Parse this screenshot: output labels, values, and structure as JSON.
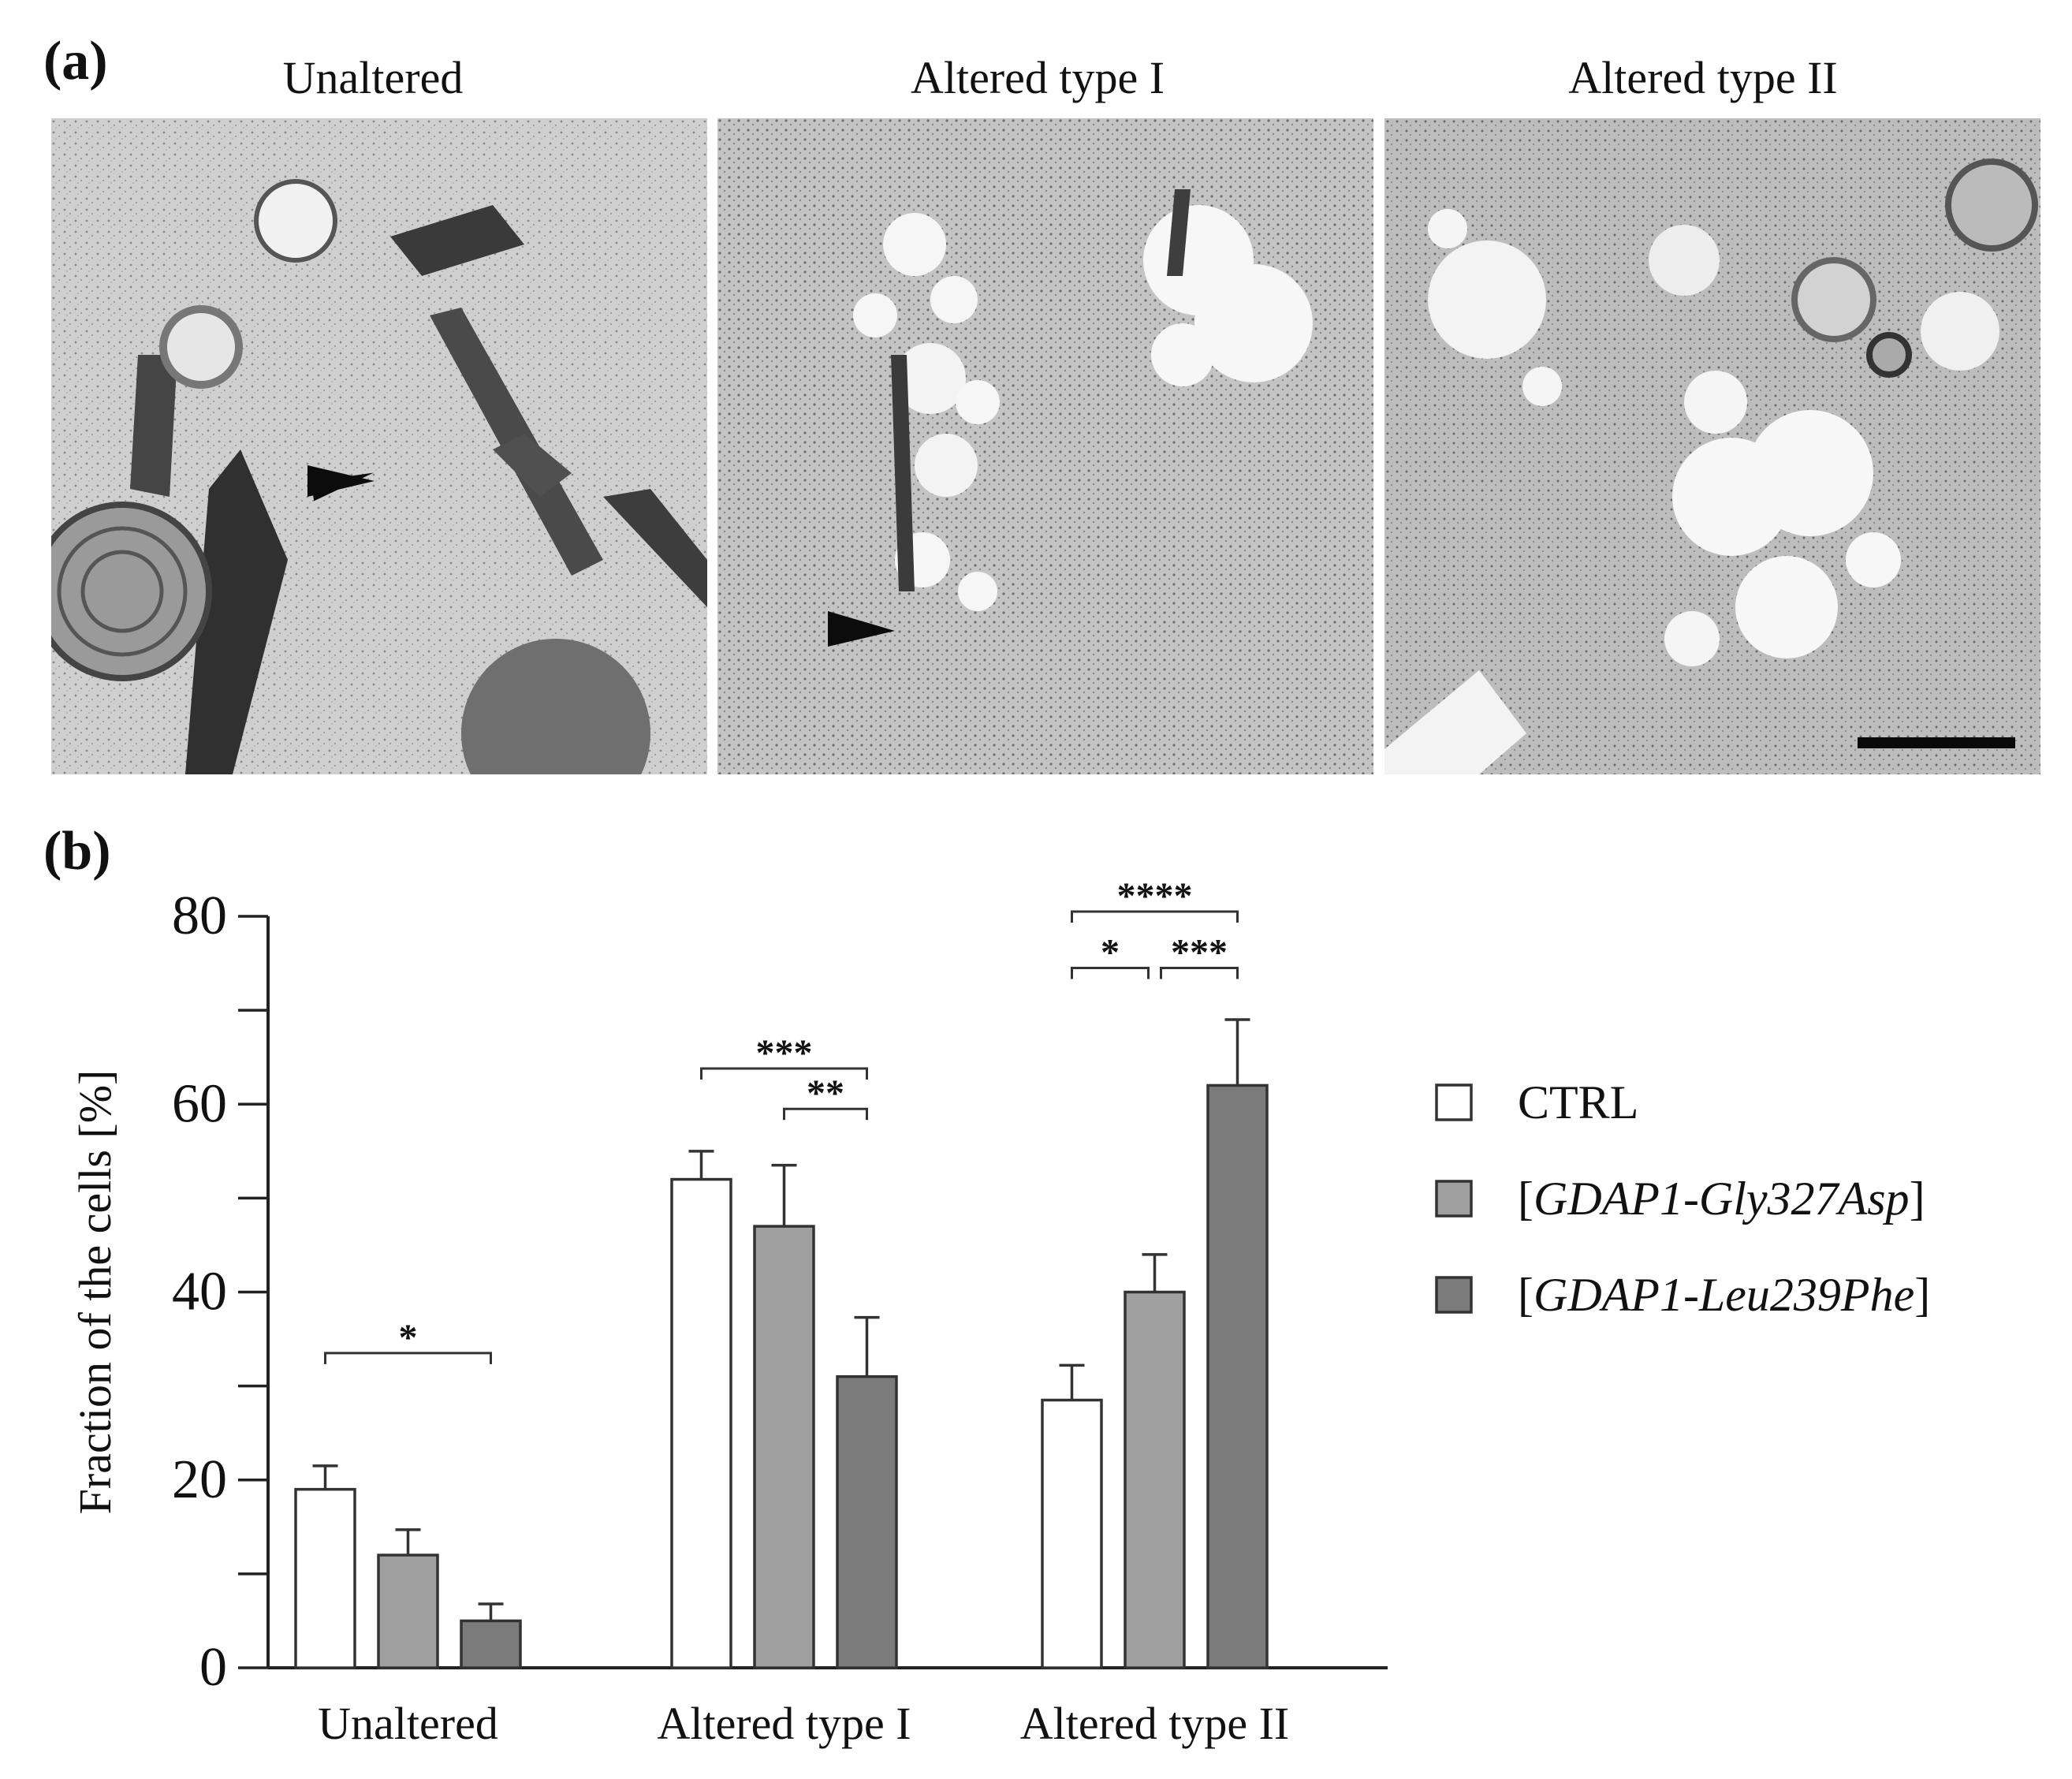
{
  "figure": {
    "panel_a_label": "(a)",
    "panel_b_label": "(b)",
    "micrograph_titles": [
      "Unaltered",
      "Altered type I",
      "Altered type II"
    ]
  },
  "colors": {
    "ctrl": "#ffffff",
    "gly327asp": "#a0a0a0",
    "leu239phe": "#7b7b7b",
    "axis": "#222222"
  },
  "chart_data": {
    "type": "bar",
    "title": "",
    "xlabel": "",
    "ylabel": "Fraction of the cells [%]",
    "ylim": [
      0,
      80
    ],
    "yticks": [
      "0",
      "20",
      "40",
      "60",
      "80"
    ],
    "categories": [
      "Unaltered",
      "Altered type I",
      "Altered type II"
    ],
    "series": [
      {
        "name": "CTRL",
        "values": [
          19,
          52,
          28.5
        ],
        "errors": [
          2.5,
          3,
          3.7
        ]
      },
      {
        "name": "[GDAP1-Gly327Asp]",
        "values": [
          12,
          47,
          40
        ],
        "errors": [
          2.7,
          6.5,
          4
        ]
      },
      {
        "name": "[GDAP1-Leu239Phe]",
        "values": [
          5,
          31,
          62
        ],
        "errors": [
          1.8,
          6.3,
          7
        ]
      }
    ],
    "legend_position": "right",
    "significance": [
      {
        "category": 0,
        "from": 0,
        "to": 2,
        "label": "*"
      },
      {
        "category": 1,
        "from": 0,
        "to": 2,
        "label": "***"
      },
      {
        "category": 1,
        "from": 1,
        "to": 2,
        "label": "**"
      },
      {
        "category": 2,
        "from": 0,
        "to": 2,
        "label": "****"
      },
      {
        "category": 2,
        "from": 0,
        "to": 1,
        "label": "*"
      },
      {
        "category": 2,
        "from": 1,
        "to": 2,
        "label": "***"
      }
    ]
  }
}
